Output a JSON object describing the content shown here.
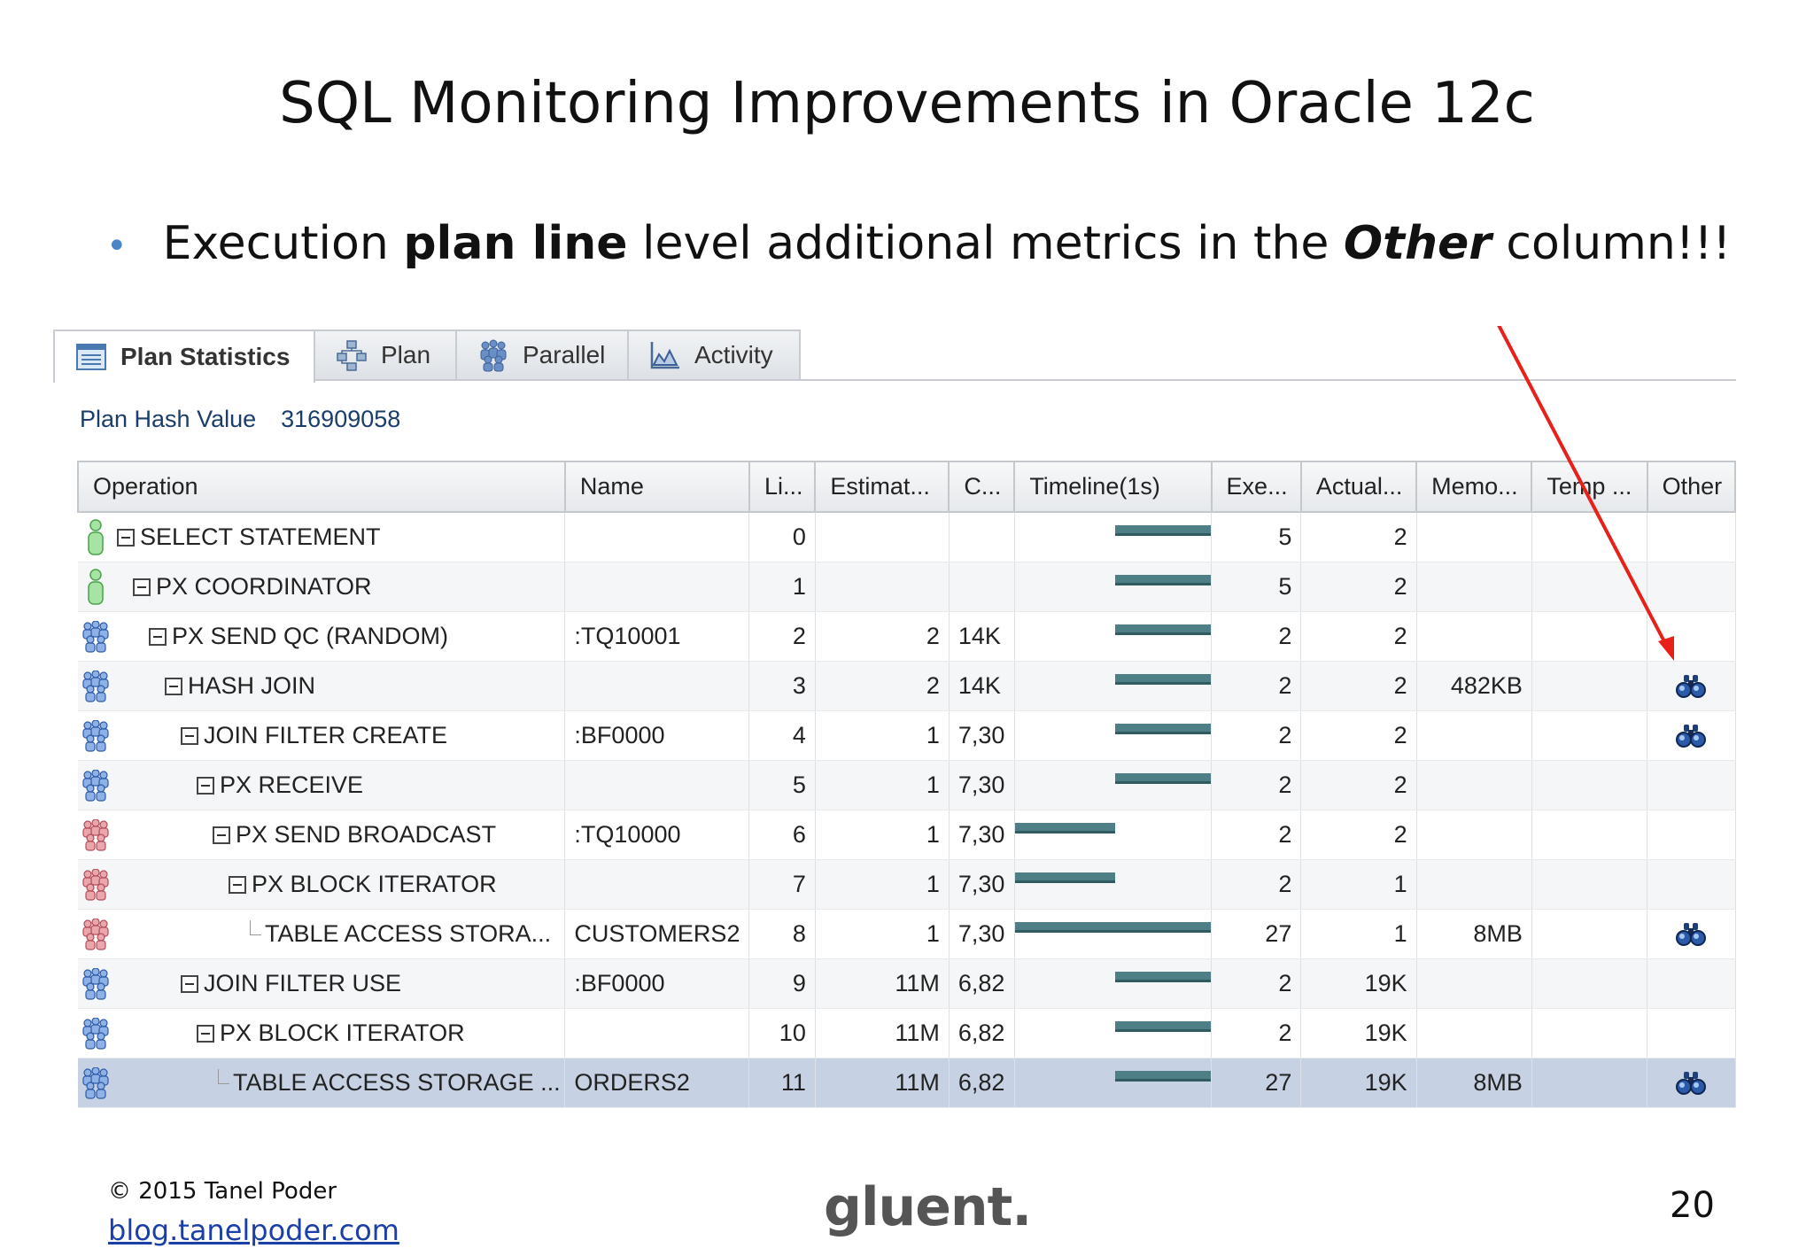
{
  "slide": {
    "title": "SQL Monitoring Improvements in Oracle 12c",
    "bullet": {
      "part1": "Execution ",
      "bold": "plan line",
      "part2": " level additional metrics in the ",
      "italic": "Other",
      "part3": " column!!!"
    }
  },
  "tabs": [
    {
      "label": "Plan Statistics",
      "icon": "plan-statistics-icon",
      "active": true
    },
    {
      "label": "Plan",
      "icon": "plan-tree-icon",
      "active": false
    },
    {
      "label": "Parallel",
      "icon": "parallel-icon",
      "active": false
    },
    {
      "label": "Activity",
      "icon": "activity-chart-icon",
      "active": false
    }
  ],
  "plan_hash": {
    "label": "Plan Hash Value",
    "value": "316909058"
  },
  "columns": [
    "Operation",
    "Name",
    "Li...",
    "Estimat...",
    "C...",
    "Timeline(1s)",
    "Exe...",
    "Actual...",
    "Memo...",
    "Temp ...",
    "Other"
  ],
  "rows": [
    {
      "operation": "SELECT STATEMENT",
      "name": "",
      "line": "0",
      "estimated": "",
      "cost": "",
      "executions": "5",
      "actual": "2",
      "memory": "",
      "temp": "",
      "other": false,
      "bar_start": 0.5,
      "bar_end": 1.0,
      "depth": 0,
      "leaf": false,
      "person": "coordinator",
      "selected": false
    },
    {
      "operation": "PX COORDINATOR",
      "name": "",
      "line": "1",
      "estimated": "",
      "cost": "",
      "executions": "5",
      "actual": "2",
      "memory": "",
      "temp": "",
      "other": false,
      "bar_start": 0.5,
      "bar_end": 1.0,
      "depth": 1,
      "leaf": false,
      "person": "coordinator",
      "selected": false
    },
    {
      "operation": "PX SEND QC (RANDOM)",
      "name": ":TQ10001",
      "line": "2",
      "estimated": "2",
      "cost": "14K",
      "executions": "2",
      "actual": "2",
      "memory": "",
      "temp": "",
      "other": false,
      "bar_start": 0.5,
      "bar_end": 1.0,
      "depth": 2,
      "leaf": false,
      "person": "blue",
      "selected": false
    },
    {
      "operation": "HASH JOIN",
      "name": "",
      "line": "3",
      "estimated": "2",
      "cost": "14K",
      "executions": "2",
      "actual": "2",
      "memory": "482KB",
      "temp": "",
      "other": true,
      "bar_start": 0.5,
      "bar_end": 1.0,
      "depth": 3,
      "leaf": false,
      "person": "blue",
      "selected": false
    },
    {
      "operation": "JOIN FILTER CREATE",
      "name": ":BF0000",
      "line": "4",
      "estimated": "1",
      "cost": "7,30",
      "executions": "2",
      "actual": "2",
      "memory": "",
      "temp": "",
      "other": true,
      "bar_start": 0.5,
      "bar_end": 1.0,
      "depth": 4,
      "leaf": false,
      "person": "blue",
      "selected": false
    },
    {
      "operation": "PX RECEIVE",
      "name": "",
      "line": "5",
      "estimated": "1",
      "cost": "7,30",
      "executions": "2",
      "actual": "2",
      "memory": "",
      "temp": "",
      "other": false,
      "bar_start": 0.5,
      "bar_end": 1.0,
      "depth": 5,
      "leaf": false,
      "person": "blue",
      "selected": false
    },
    {
      "operation": "PX SEND BROADCAST",
      "name": ":TQ10000",
      "line": "6",
      "estimated": "1",
      "cost": "7,30",
      "executions": "2",
      "actual": "2",
      "memory": "",
      "temp": "",
      "other": false,
      "bar_start": 0.0,
      "bar_end": 0.5,
      "depth": 6,
      "leaf": false,
      "person": "red",
      "selected": false
    },
    {
      "operation": "PX BLOCK ITERATOR",
      "name": "",
      "line": "7",
      "estimated": "1",
      "cost": "7,30",
      "executions": "2",
      "actual": "1",
      "memory": "",
      "temp": "",
      "other": false,
      "bar_start": 0.0,
      "bar_end": 0.5,
      "depth": 7,
      "leaf": false,
      "person": "red",
      "selected": false
    },
    {
      "operation": "TABLE ACCESS STORA...",
      "name": "CUSTOMERS2",
      "line": "8",
      "estimated": "1",
      "cost": "7,30",
      "executions": "27",
      "actual": "1",
      "memory": "8MB",
      "temp": "",
      "other": true,
      "bar_start": 0.0,
      "bar_end": 1.0,
      "depth": 8,
      "leaf": true,
      "person": "red",
      "selected": false
    },
    {
      "operation": "JOIN FILTER USE",
      "name": ":BF0000",
      "line": "9",
      "estimated": "11M",
      "cost": "6,82",
      "executions": "2",
      "actual": "19K",
      "memory": "",
      "temp": "",
      "other": false,
      "bar_start": 0.5,
      "bar_end": 1.0,
      "depth": 4,
      "leaf": false,
      "person": "blue",
      "selected": false
    },
    {
      "operation": "PX BLOCK ITERATOR",
      "name": "",
      "line": "10",
      "estimated": "11M",
      "cost": "6,82",
      "executions": "2",
      "actual": "19K",
      "memory": "",
      "temp": "",
      "other": false,
      "bar_start": 0.5,
      "bar_end": 1.0,
      "depth": 5,
      "leaf": false,
      "person": "blue",
      "selected": false
    },
    {
      "operation": "TABLE ACCESS STORAGE ...",
      "name": "ORDERS2",
      "line": "11",
      "estimated": "11M",
      "cost": "6,82",
      "executions": "27",
      "actual": "19K",
      "memory": "8MB",
      "temp": "",
      "other": true,
      "bar_start": 0.5,
      "bar_end": 1.0,
      "depth": 6,
      "leaf": true,
      "person": "blue",
      "selected": true
    }
  ],
  "colors": {
    "arrow": "#e8201a",
    "bar": "#4e7f86",
    "selected_row": "#c6d2e3",
    "bullet": "#4a86c5"
  },
  "footer": {
    "copyright": "© 2015 Tanel Poder",
    "link": "blog.tanelpoder.com",
    "logo": "gluent.",
    "page": "20"
  }
}
